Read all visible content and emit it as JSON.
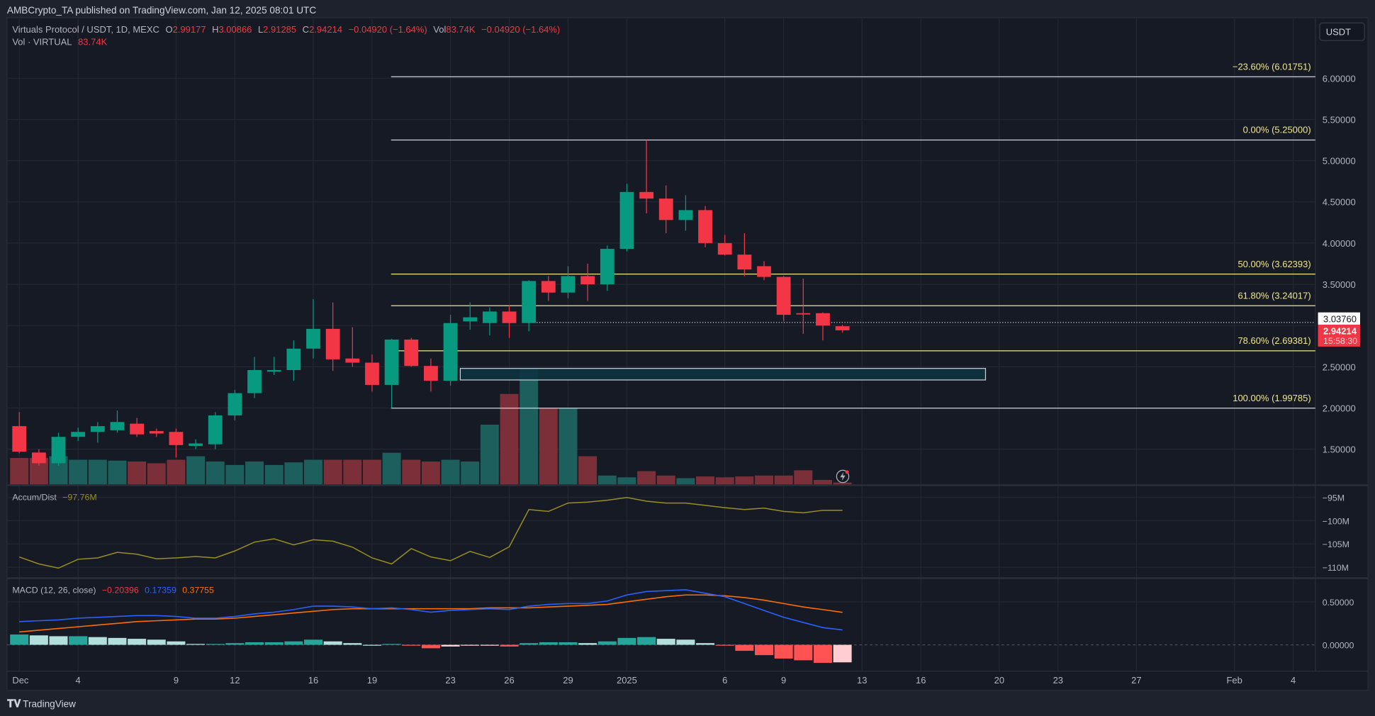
{
  "publish_line": "AMBCrypto_TA published on TradingView.com, Jan 12, 2025 08:01 UTC",
  "legend": {
    "symbol": "Virtuals Protocol / USDT, 1D, MEXC",
    "o_label": "O",
    "o": "2.99177",
    "h_label": "H",
    "h": "3.00866",
    "l_label": "L",
    "l": "2.91285",
    "c_label": "C",
    "c": "2.94214",
    "change": "−0.04920 (−1.64%)",
    "vol_label": "Vol",
    "vol": "83.74K",
    "vol_change": "−0.04920 (−1.64%)",
    "vol_series": "Vol · VIRTUAL",
    "vol_series_value": "83.74K"
  },
  "currency_button": "USDT",
  "price_axis": [
    "6.00000",
    "5.50000",
    "5.00000",
    "4.50000",
    "4.00000",
    "3.50000",
    "2.50000",
    "2.00000",
    "1.50000"
  ],
  "price_axis_values": [
    6,
    5.5,
    5,
    4.5,
    4,
    3.5,
    2.5,
    2,
    1.5
  ],
  "last_price_tag": {
    "price": "2.94214",
    "countdown": "15:58:30"
  },
  "crosshair_tag": {
    "price": "3.03760",
    "value": 3.0376
  },
  "fib": [
    {
      "label": "−23.60% (6.01751)",
      "value": 6.01751,
      "color": "#d1d4dc"
    },
    {
      "label": "0.00% (5.25000)",
      "value": 5.25,
      "color": "#d1d4dc"
    },
    {
      "label": "50.00% (3.62393)",
      "value": 3.62393,
      "color": "#f0e68c"
    },
    {
      "label": "61.80% (3.24017)",
      "value": 3.24017,
      "color": "#f0e68c"
    },
    {
      "label": "78.60% (2.69381)",
      "value": 2.69381,
      "color": "#f0e68c"
    },
    {
      "label": "100.00% (1.99785)",
      "value": 1.99785,
      "color": "#d1d4dc"
    }
  ],
  "zone": {
    "top": 2.48,
    "bottom": 2.34,
    "from_day": 22.5,
    "to_day": 49.3
  },
  "colors": {
    "up": "#089981",
    "down": "#f23645",
    "vol_up": "#1d5f5c",
    "vol_down": "#7b2f38",
    "accum": "#9a8f1c",
    "macd": "#2962ff",
    "signal": "#ff6d00"
  },
  "chart_data": {
    "type": "candlestick",
    "start": "Dec 1 2024",
    "ohlc": [
      [
        1.78,
        1.95,
        1.45,
        1.47
      ],
      [
        1.46,
        1.5,
        1.3,
        1.33
      ],
      [
        1.33,
        1.7,
        1.3,
        1.65
      ],
      [
        1.65,
        1.76,
        1.6,
        1.71
      ],
      [
        1.71,
        1.83,
        1.58,
        1.78
      ],
      [
        1.73,
        1.97,
        1.7,
        1.83
      ],
      [
        1.81,
        1.88,
        1.65,
        1.68
      ],
      [
        1.72,
        1.75,
        1.65,
        1.69
      ],
      [
        1.71,
        1.75,
        1.4,
        1.55
      ],
      [
        1.54,
        1.62,
        1.5,
        1.57
      ],
      [
        1.56,
        1.95,
        1.5,
        1.91
      ],
      [
        1.91,
        2.22,
        1.85,
        2.18
      ],
      [
        2.18,
        2.62,
        2.12,
        2.46
      ],
      [
        2.44,
        2.62,
        2.4,
        2.46
      ],
      [
        2.46,
        2.82,
        2.33,
        2.72
      ],
      [
        2.72,
        3.32,
        2.6,
        2.96
      ],
      [
        2.96,
        3.28,
        2.45,
        2.59
      ],
      [
        2.6,
        2.98,
        2.5,
        2.55
      ],
      [
        2.55,
        2.65,
        2.2,
        2.28
      ],
      [
        2.28,
        2.84,
        2.0,
        2.83
      ],
      [
        2.83,
        2.85,
        2.5,
        2.51
      ],
      [
        2.51,
        2.6,
        2.2,
        2.33
      ],
      [
        2.33,
        3.13,
        2.27,
        3.03
      ],
      [
        3.05,
        3.28,
        2.95,
        3.1
      ],
      [
        3.03,
        3.22,
        2.88,
        3.17
      ],
      [
        3.17,
        3.25,
        2.85,
        3.03
      ],
      [
        3.03,
        3.55,
        2.93,
        3.54
      ],
      [
        3.54,
        3.6,
        3.3,
        3.4
      ],
      [
        3.4,
        3.72,
        3.33,
        3.6
      ],
      [
        3.6,
        3.75,
        3.3,
        3.5
      ],
      [
        3.5,
        3.97,
        3.42,
        3.93
      ],
      [
        3.93,
        4.72,
        3.9,
        4.62
      ],
      [
        4.62,
        5.25,
        4.36,
        4.54
      ],
      [
        4.54,
        4.7,
        4.12,
        4.28
      ],
      [
        4.28,
        4.58,
        4.15,
        4.4
      ],
      [
        4.4,
        4.45,
        3.95,
        4.0
      ],
      [
        4.0,
        4.1,
        3.85,
        3.86
      ],
      [
        3.86,
        4.12,
        3.6,
        3.68
      ],
      [
        3.72,
        3.78,
        3.55,
        3.59
      ],
      [
        3.59,
        3.6,
        3.05,
        3.13
      ],
      [
        3.15,
        3.57,
        2.9,
        3.14
      ],
      [
        3.15,
        3.16,
        2.82,
        3.0
      ],
      [
        2.99177,
        3.00866,
        2.91285,
        2.94214
      ]
    ],
    "volume": [
      30,
      30,
      32,
      28,
      28,
      27,
      26,
      24,
      28,
      32,
      26,
      22,
      26,
      22,
      25,
      28,
      28,
      28,
      28,
      36,
      28,
      26,
      28,
      26,
      68,
      103,
      132,
      87,
      87,
      32,
      10,
      8,
      15,
      10,
      7,
      9,
      8,
      9,
      10,
      10,
      16,
      5,
      2
    ],
    "accum_dist": {
      "label": "Accum/Dist",
      "value": "−97.76M",
      "axis": [
        "−95M",
        "−100M",
        "−105M",
        "−110M"
      ],
      "axis_values": [
        -95,
        -100,
        -105,
        -110
      ],
      "values": [
        -107.8,
        -109.3,
        -110.2,
        -108.3,
        -108.0,
        -106.8,
        -107.2,
        -108.2,
        -108.0,
        -107.7,
        -108.0,
        -106.5,
        -104.6,
        -103.9,
        -105.2,
        -104.1,
        -104.4,
        -105.7,
        -108.0,
        -109.3,
        -106.0,
        -107.8,
        -108.6,
        -106.6,
        -107.9,
        -105.6,
        -97.6,
        -98.0,
        -96.2,
        -96.0,
        -95.6,
        -95.0,
        -95.8,
        -96.2,
        -96.2,
        -96.7,
        -97.2,
        -97.6,
        -97.3,
        -98.0,
        -98.3,
        -97.76,
        -97.76
      ]
    },
    "macd": {
      "label": "MACD (12, 26, close)",
      "hist_value": "−0.20396",
      "macd_value": "0.17359",
      "signal_value": "0.37755",
      "axis": [
        "0.50000",
        "0.00000"
      ],
      "axis_values": [
        0.5,
        0
      ],
      "macd": [
        0.27,
        0.28,
        0.29,
        0.31,
        0.32,
        0.33,
        0.34,
        0.34,
        0.33,
        0.31,
        0.31,
        0.33,
        0.36,
        0.38,
        0.41,
        0.45,
        0.45,
        0.44,
        0.42,
        0.43,
        0.41,
        0.38,
        0.4,
        0.41,
        0.42,
        0.41,
        0.45,
        0.47,
        0.48,
        0.48,
        0.51,
        0.58,
        0.62,
        0.63,
        0.64,
        0.6,
        0.56,
        0.48,
        0.4,
        0.32,
        0.26,
        0.2,
        0.17359
      ],
      "signal": [
        0.15,
        0.17,
        0.19,
        0.21,
        0.23,
        0.25,
        0.27,
        0.28,
        0.29,
        0.3,
        0.3,
        0.31,
        0.33,
        0.35,
        0.37,
        0.39,
        0.41,
        0.42,
        0.42,
        0.42,
        0.42,
        0.42,
        0.42,
        0.42,
        0.43,
        0.43,
        0.43,
        0.44,
        0.45,
        0.46,
        0.47,
        0.5,
        0.53,
        0.56,
        0.58,
        0.58,
        0.57,
        0.55,
        0.52,
        0.48,
        0.44,
        0.41,
        0.37755
      ]
    },
    "x_ticks": [
      {
        "label": "Dec",
        "day": 0
      },
      {
        "label": "4",
        "day": 3
      },
      {
        "label": "9",
        "day": 8
      },
      {
        "label": "12",
        "day": 11
      },
      {
        "label": "16",
        "day": 15
      },
      {
        "label": "19",
        "day": 18
      },
      {
        "label": "23",
        "day": 22
      },
      {
        "label": "26",
        "day": 25
      },
      {
        "label": "29",
        "day": 28
      },
      {
        "label": "2025",
        "day": 31
      },
      {
        "label": "6",
        "day": 36
      },
      {
        "label": "9",
        "day": 39
      },
      {
        "label": "13",
        "day": 43
      },
      {
        "label": "16",
        "day": 46
      },
      {
        "label": "20",
        "day": 50
      },
      {
        "label": "23",
        "day": 53
      },
      {
        "label": "27",
        "day": 57
      },
      {
        "label": "Feb",
        "day": 62
      },
      {
        "label": "4",
        "day": 65
      }
    ]
  },
  "footer_logo": "TradingView"
}
